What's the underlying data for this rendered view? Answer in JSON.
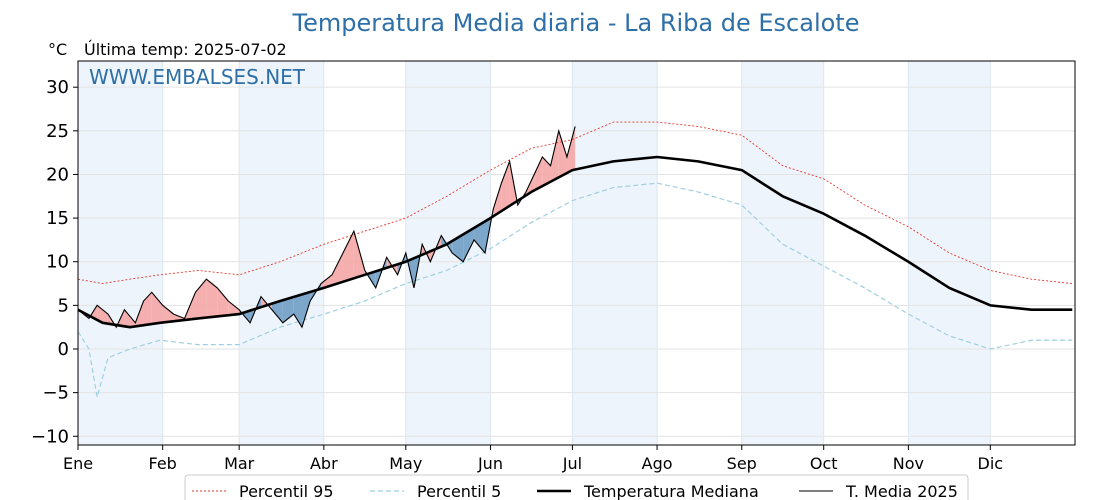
{
  "chart_data": {
    "type": "line",
    "title": "Temperatura Media diaria - La Riba de Escalote",
    "unit": "°C",
    "last_temp": "Última temp: 2025-07-02",
    "watermark": "WWW.EMBALSES.NET",
    "ylim": [
      -11,
      33
    ],
    "yticks": [
      "30",
      "25",
      "20",
      "15",
      "10",
      "5",
      "0",
      "−5",
      "−10"
    ],
    "ytick_values": [
      30,
      25,
      20,
      15,
      10,
      5,
      0,
      -5,
      -10
    ],
    "months": [
      "Ene",
      "Feb",
      "Mar",
      "Abr",
      "May",
      "Jun",
      "Jul",
      "Ago",
      "Sep",
      "Oct",
      "Nov",
      "Dic"
    ],
    "month_start_days": [
      1,
      32,
      60,
      91,
      121,
      152,
      182,
      213,
      244,
      274,
      305,
      335
    ],
    "grid": true,
    "legend_position": "bottom",
    "colors": {
      "p95": "#e8362a",
      "p5": "#9fd0e0",
      "median": "#000000",
      "current": "#000000",
      "above_fill": "#f4a6a6",
      "below_fill": "#6f9fc5",
      "band": "#eef4fb",
      "title": "#2e6fa7"
    },
    "series": [
      {
        "name": "Percentil 95",
        "days": [
          1,
          10,
          20,
          31,
          45,
          60,
          75,
          91,
          106,
          121,
          136,
          152,
          167,
          182,
          197,
          213,
          228,
          244,
          259,
          274,
          289,
          305,
          320,
          335,
          350,
          365
        ],
        "values": [
          8.0,
          7.5,
          8.0,
          8.5,
          9.0,
          8.5,
          10.0,
          12.0,
          13.5,
          15.0,
          17.5,
          20.5,
          23.0,
          24.0,
          26.0,
          26.0,
          25.5,
          24.5,
          21.0,
          19.5,
          16.5,
          14.0,
          11.0,
          9.0,
          8.0,
          7.5
        ]
      },
      {
        "name": "Percentil 5",
        "days": [
          1,
          5,
          8,
          12,
          20,
          31,
          45,
          60,
          75,
          91,
          106,
          121,
          136,
          152,
          167,
          182,
          197,
          213,
          228,
          244,
          259,
          274,
          289,
          305,
          320,
          335,
          350,
          365
        ],
        "values": [
          2.0,
          0.0,
          -5.5,
          -1.0,
          0.0,
          1.0,
          0.5,
          0.5,
          2.5,
          4.0,
          5.5,
          7.5,
          9.0,
          11.5,
          14.5,
          17.0,
          18.5,
          19.0,
          18.0,
          16.5,
          12.0,
          9.5,
          7.0,
          4.0,
          1.5,
          0.0,
          1.0,
          1.0
        ]
      },
      {
        "name": "Temperatura Mediana",
        "days": [
          1,
          10,
          20,
          31,
          45,
          60,
          75,
          91,
          106,
          121,
          136,
          152,
          167,
          182,
          197,
          213,
          228,
          244,
          259,
          274,
          289,
          305,
          320,
          335,
          350,
          365
        ],
        "values": [
          4.5,
          3.0,
          2.5,
          3.0,
          3.5,
          4.0,
          5.5,
          7.0,
          8.5,
          10.0,
          12.0,
          15.0,
          18.0,
          20.5,
          21.5,
          22.0,
          21.5,
          20.5,
          17.5,
          15.5,
          13.0,
          10.0,
          7.0,
          5.0,
          4.5,
          4.5
        ]
      },
      {
        "name": "T. Media 2025",
        "days": [
          1,
          5,
          8,
          12,
          15,
          18,
          22,
          25,
          28,
          32,
          36,
          40,
          44,
          48,
          52,
          56,
          60,
          64,
          68,
          72,
          76,
          80,
          83,
          86,
          90,
          94,
          98,
          102,
          106,
          110,
          114,
          118,
          121,
          124,
          127,
          130,
          134,
          138,
          142,
          146,
          150,
          153,
          156,
          159,
          162,
          165,
          168,
          171,
          174,
          177,
          180,
          183
        ],
        "values": [
          4.5,
          3.5,
          5.0,
          4.0,
          2.5,
          4.5,
          3.0,
          5.5,
          6.5,
          5.0,
          4.0,
          3.5,
          6.5,
          8.0,
          7.0,
          5.5,
          4.5,
          3.0,
          6.0,
          4.5,
          3.0,
          4.0,
          2.5,
          5.5,
          7.5,
          8.5,
          11.0,
          13.5,
          9.0,
          7.0,
          10.5,
          8.5,
          11.0,
          7.0,
          12.0,
          10.0,
          13.0,
          11.0,
          10.0,
          12.5,
          11.0,
          16.0,
          19.0,
          21.5,
          16.5,
          18.0,
          20.0,
          22.0,
          21.0,
          25.0,
          22.0,
          25.5
        ]
      }
    ]
  }
}
